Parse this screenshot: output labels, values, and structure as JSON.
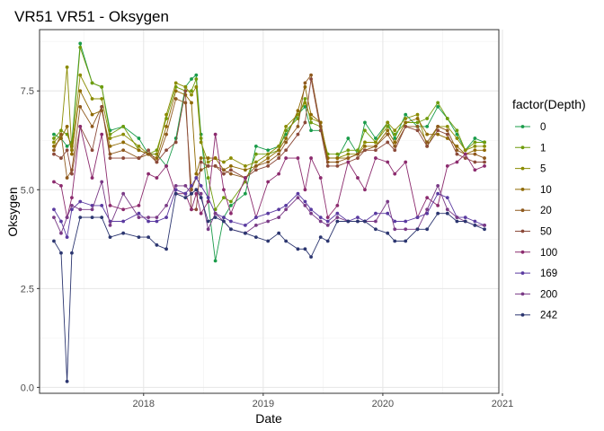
{
  "chart_data": {
    "type": "line",
    "title": "VR51 VR51  -  Oksygen",
    "xlabel": "Date",
    "ylabel": "Oksygen",
    "xlim": [
      2017.13,
      2020.97
    ],
    "ylim": [
      -0.15,
      9.05
    ],
    "x_ticks": [
      2018,
      2019,
      2020,
      2021
    ],
    "x_tick_labels": [
      "2018",
      "2019",
      "2020",
      "2021"
    ],
    "y_ticks": [
      0,
      2.5,
      5,
      7.5
    ],
    "y_tick_labels": [
      "0.0",
      "2.5",
      "5.0",
      "7.5"
    ],
    "grid": true,
    "legend": {
      "title": "factor(Depth)",
      "position": "right"
    },
    "x": [
      2017.25,
      2017.31,
      2017.36,
      2017.4,
      2017.47,
      2017.57,
      2017.65,
      2017.72,
      2017.83,
      2017.96,
      2018.04,
      2018.11,
      2018.19,
      2018.27,
      2018.35,
      2018.4,
      2018.44,
      2018.48,
      2018.54,
      2018.6,
      2018.67,
      2018.73,
      2018.85,
      2018.94,
      2019.04,
      2019.13,
      2019.19,
      2019.29,
      2019.35,
      2019.4,
      2019.48,
      2019.54,
      2019.62,
      2019.71,
      2019.79,
      2019.85,
      2019.94,
      2020.04,
      2020.1,
      2020.19,
      2020.29,
      2020.37,
      2020.46,
      2020.54,
      2020.62,
      2020.69,
      2020.77,
      2020.85
    ],
    "series": [
      {
        "name": "0",
        "color": "#1a9c4a",
        "values": [
          6.4,
          6.3,
          6.1,
          6.2,
          8.7,
          7.7,
          7.6,
          6.5,
          6.6,
          6.3,
          5.9,
          5.9,
          5.6,
          6.3,
          7.6,
          7.8,
          7.9,
          6.4,
          4.7,
          3.2,
          4.3,
          4.6,
          4.9,
          6.1,
          6.0,
          6.1,
          6.4,
          6.9,
          7.1,
          6.5,
          6.5,
          5.8,
          5.8,
          6.3,
          5.9,
          6.7,
          6.3,
          6.7,
          6.3,
          6.9,
          6.6,
          6.6,
          7.1,
          6.8,
          6.4,
          6.0,
          6.3,
          6.2
        ]
      },
      {
        "name": "1",
        "color": "#6f9c0c",
        "values": [
          6.3,
          6.5,
          6.4,
          6.1,
          8.6,
          7.7,
          7.6,
          6.4,
          6.6,
          6.0,
          5.9,
          6.0,
          6.8,
          7.6,
          7.5,
          7.5,
          7.8,
          6.3,
          5.3,
          4.5,
          4.8,
          4.7,
          5.2,
          5.9,
          5.9,
          6.0,
          6.5,
          6.8,
          7.3,
          6.7,
          6.6,
          5.9,
          5.9,
          6.0,
          6.0,
          6.5,
          6.2,
          6.6,
          6.4,
          6.7,
          6.7,
          6.8,
          7.2,
          6.8,
          6.5,
          6.0,
          6.2,
          6.2
        ]
      },
      {
        "name": "5",
        "color": "#8a8c00",
        "values": [
          6.2,
          6.4,
          8.1,
          6.0,
          7.9,
          7.3,
          7.3,
          6.3,
          6.4,
          6.1,
          5.9,
          5.9,
          6.9,
          7.7,
          7.6,
          7.4,
          7.6,
          6.2,
          5.7,
          5.8,
          5.7,
          5.8,
          5.6,
          5.7,
          5.9,
          6.1,
          6.6,
          6.9,
          7.2,
          6.8,
          6.7,
          5.8,
          5.8,
          5.9,
          5.9,
          6.2,
          6.2,
          6.7,
          6.5,
          6.8,
          6.9,
          6.1,
          6.6,
          6.6,
          6.3,
          6.0,
          6.1,
          6.1
        ]
      },
      {
        "name": "10",
        "color": "#8f6a00",
        "values": [
          6.1,
          6.3,
          6.6,
          5.9,
          7.5,
          6.9,
          7.0,
          6.1,
          6.2,
          6.0,
          5.9,
          5.8,
          6.6,
          7.5,
          7.4,
          7.2,
          5.4,
          5.8,
          5.8,
          5.8,
          5.5,
          5.6,
          5.5,
          5.6,
          5.8,
          6.0,
          6.3,
          7.0,
          7.6,
          6.9,
          6.7,
          5.8,
          5.8,
          5.8,
          5.9,
          6.1,
          6.1,
          6.5,
          6.2,
          6.7,
          6.8,
          6.4,
          6.4,
          6.3,
          6.1,
          5.9,
          6.0,
          6.0
        ]
      },
      {
        "name": "20",
        "color": "#8f5a1e",
        "values": [
          6.0,
          6.4,
          5.3,
          5.5,
          7.1,
          6.6,
          7.1,
          5.9,
          6.0,
          5.8,
          5.9,
          5.7,
          6.4,
          7.3,
          7.2,
          5.0,
          5.3,
          5.5,
          5.6,
          5.6,
          5.5,
          5.4,
          5.3,
          5.6,
          5.7,
          5.9,
          6.2,
          6.6,
          7.7,
          7.9,
          6.6,
          5.7,
          5.7,
          5.8,
          5.9,
          6.0,
          6.1,
          6.4,
          6.1,
          6.6,
          6.6,
          6.2,
          6.6,
          6.5,
          6.0,
          5.9,
          5.9,
          5.8
        ]
      },
      {
        "name": "50",
        "color": "#8c4a3a",
        "values": [
          5.9,
          5.8,
          6.0,
          5.4,
          6.6,
          6.0,
          7.1,
          5.8,
          5.8,
          5.8,
          6.0,
          5.7,
          6.0,
          6.2,
          7.5,
          4.5,
          4.5,
          5.7,
          5.6,
          5.6,
          5.4,
          5.5,
          5.3,
          5.5,
          5.6,
          5.8,
          6.0,
          6.4,
          6.7,
          7.8,
          6.5,
          5.6,
          5.6,
          5.7,
          5.8,
          6.0,
          6.0,
          6.2,
          6.0,
          6.6,
          6.5,
          6.1,
          6.5,
          6.4,
          5.9,
          5.8,
          5.7,
          5.7
        ]
      },
      {
        "name": "100",
        "color": "#8c2b6e",
        "values": [
          5.2,
          5.1,
          4.3,
          4.8,
          6.6,
          5.3,
          6.4,
          4.6,
          4.5,
          4.6,
          5.4,
          5.3,
          5.6,
          4.9,
          4.9,
          4.5,
          4.9,
          4.4,
          4.7,
          6.4,
          5.0,
          4.4,
          5.3,
          4.3,
          5.2,
          5.4,
          5.8,
          5.8,
          5.0,
          5.8,
          5.3,
          4.3,
          4.6,
          5.7,
          5.3,
          5.0,
          5.8,
          5.7,
          5.4,
          5.7,
          4.3,
          4.8,
          4.6,
          5.6,
          5.7,
          5.9,
          5.5,
          5.6
        ]
      },
      {
        "name": "169",
        "color": "#5a3aa0",
        "values": [
          4.5,
          4.2,
          3.8,
          4.5,
          4.7,
          4.6,
          4.6,
          4.2,
          4.2,
          4.4,
          4.2,
          4.2,
          4.3,
          5.0,
          4.9,
          5.1,
          5.3,
          5.1,
          4.8,
          4.4,
          4.3,
          4.2,
          4.1,
          4.3,
          4.4,
          4.5,
          4.6,
          4.9,
          4.7,
          4.5,
          4.3,
          4.2,
          4.4,
          4.2,
          4.3,
          4.2,
          4.4,
          4.4,
          4.2,
          4.2,
          4.3,
          4.4,
          4.9,
          4.8,
          4.3,
          4.3,
          4.2,
          4.1
        ]
      },
      {
        "name": "200",
        "color": "#7a3a86",
        "values": [
          4.3,
          3.9,
          4.3,
          4.6,
          4.5,
          4.5,
          5.2,
          4.1,
          4.9,
          4.3,
          4.3,
          4.3,
          4.6,
          5.1,
          5.1,
          4.9,
          5.0,
          4.9,
          4.0,
          4.4,
          4.2,
          4.0,
          3.9,
          4.1,
          4.2,
          4.3,
          4.5,
          4.8,
          4.6,
          4.4,
          4.2,
          4.1,
          4.3,
          4.2,
          4.2,
          4.2,
          4.2,
          4.7,
          4.0,
          4.0,
          4.0,
          4.5,
          5.1,
          4.5,
          4.3,
          4.2,
          4.1,
          4.1
        ]
      },
      {
        "name": "242",
        "color": "#2c3670",
        "values": [
          3.7,
          3.4,
          0.15,
          3.4,
          4.3,
          4.3,
          4.3,
          3.8,
          3.9,
          3.8,
          3.8,
          3.6,
          3.5,
          4.9,
          4.8,
          4.9,
          5.0,
          4.8,
          4.2,
          4.3,
          4.2,
          4.0,
          3.9,
          3.8,
          3.7,
          3.9,
          3.7,
          3.5,
          3.5,
          3.3,
          3.8,
          3.7,
          4.2,
          4.2,
          4.2,
          4.2,
          4.0,
          3.9,
          3.7,
          3.7,
          4.0,
          4.0,
          4.4,
          4.4,
          4.2,
          4.2,
          4.1,
          4.0
        ]
      }
    ]
  }
}
